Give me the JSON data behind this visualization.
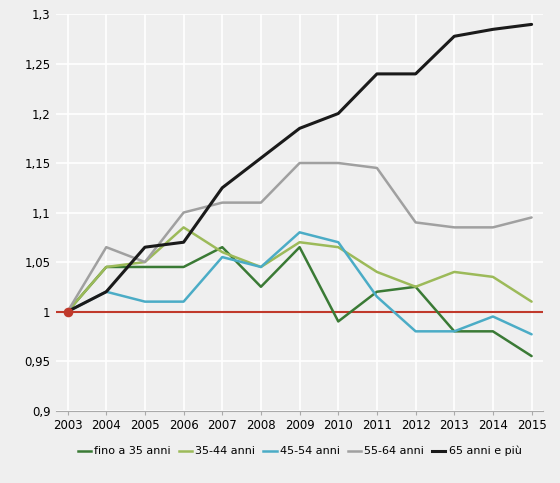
{
  "years": [
    2003,
    2004,
    2005,
    2006,
    2007,
    2008,
    2009,
    2010,
    2011,
    2012,
    2013,
    2014,
    2015
  ],
  "series": {
    "fino_a_35": {
      "label": "fino a 35 anni",
      "color": "#3a7a35",
      "values": [
        1.0,
        1.045,
        1.045,
        1.045,
        1.065,
        1.025,
        1.065,
        0.99,
        1.02,
        1.025,
        0.98,
        0.98,
        0.955
      ]
    },
    "35_44": {
      "label": "35-44 anni",
      "color": "#9cba59",
      "values": [
        1.0,
        1.045,
        1.05,
        1.085,
        1.06,
        1.045,
        1.07,
        1.065,
        1.04,
        1.025,
        1.04,
        1.035,
        1.01
      ]
    },
    "45_54": {
      "label": "45-54 anni",
      "color": "#4bacc6",
      "values": [
        1.0,
        1.02,
        1.01,
        1.01,
        1.055,
        1.045,
        1.08,
        1.07,
        1.015,
        0.98,
        0.98,
        0.995,
        0.977
      ]
    },
    "55_64": {
      "label": "55-64 anni",
      "color": "#a0a0a0",
      "values": [
        1.0,
        1.065,
        1.05,
        1.1,
        1.11,
        1.11,
        1.15,
        1.15,
        1.145,
        1.09,
        1.085,
        1.085,
        1.095
      ]
    },
    "65_plus": {
      "label": "65 anni e più",
      "color": "#1a1a1a",
      "values": [
        1.0,
        1.02,
        1.065,
        1.07,
        1.125,
        1.155,
        1.185,
        1.2,
        1.24,
        1.24,
        1.278,
        1.285,
        1.29
      ]
    }
  },
  "baseline": 1.0,
  "baseline_color": "#c0392b",
  "xlim_min": 2002.7,
  "xlim_max": 2015.3,
  "ylim": [
    0.9,
    1.3
  ],
  "yticks": [
    0.9,
    0.95,
    1.0,
    1.05,
    1.1,
    1.15,
    1.2,
    1.25,
    1.3
  ],
  "ytick_labels": [
    "0,9",
    "0,95",
    "1",
    "1,05",
    "1,1",
    "1,15",
    "1,2",
    "1,25",
    "1,3"
  ],
  "background_color": "#efefef",
  "grid_color": "#ffffff",
  "line_width": 1.8,
  "legend_fontsize": 8.0
}
